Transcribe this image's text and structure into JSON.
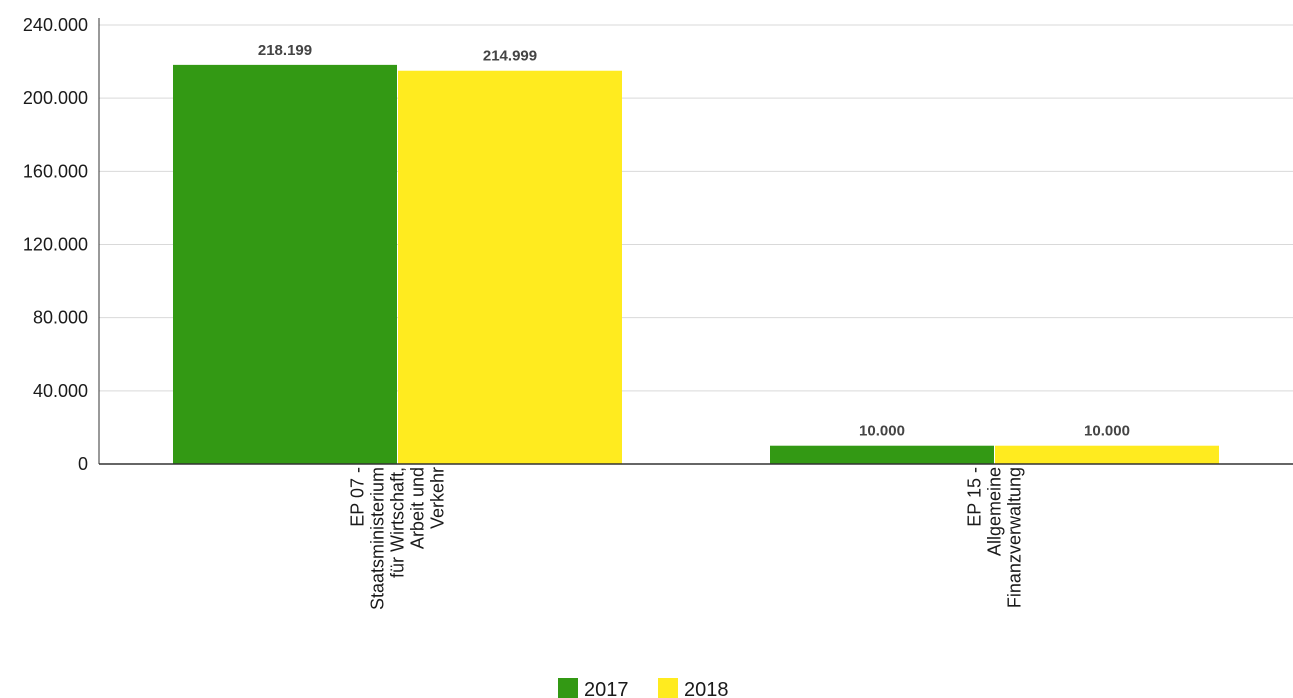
{
  "chart_data": {
    "type": "bar",
    "categories": [
      [
        "EP 07 -",
        "Staatsministerium",
        "für Wirtschaft,",
        "Arbeit und",
        "Verkehr"
      ],
      [
        "EP 15 -",
        "Allgemeine",
        "Finanzverwaltung"
      ]
    ],
    "series": [
      {
        "name": "2017",
        "color": "#339914",
        "values": [
          218199,
          10000
        ],
        "labels": [
          "218.199",
          "10.000"
        ]
      },
      {
        "name": "2018",
        "color": "#FFEB1F",
        "values": [
          214999,
          10000
        ],
        "labels": [
          "214.999",
          "10.000"
        ]
      }
    ],
    "ylim": [
      0,
      240000
    ],
    "yticks": [
      0,
      40000,
      80000,
      120000,
      160000,
      200000,
      240000
    ],
    "ytick_labels": [
      "0",
      "40.000",
      "80.000",
      "120.000",
      "160.000",
      "200.000",
      "240.000"
    ],
    "grid": true,
    "legend_position": "bottom-center",
    "title": "",
    "xlabel": "",
    "ylabel": ""
  }
}
